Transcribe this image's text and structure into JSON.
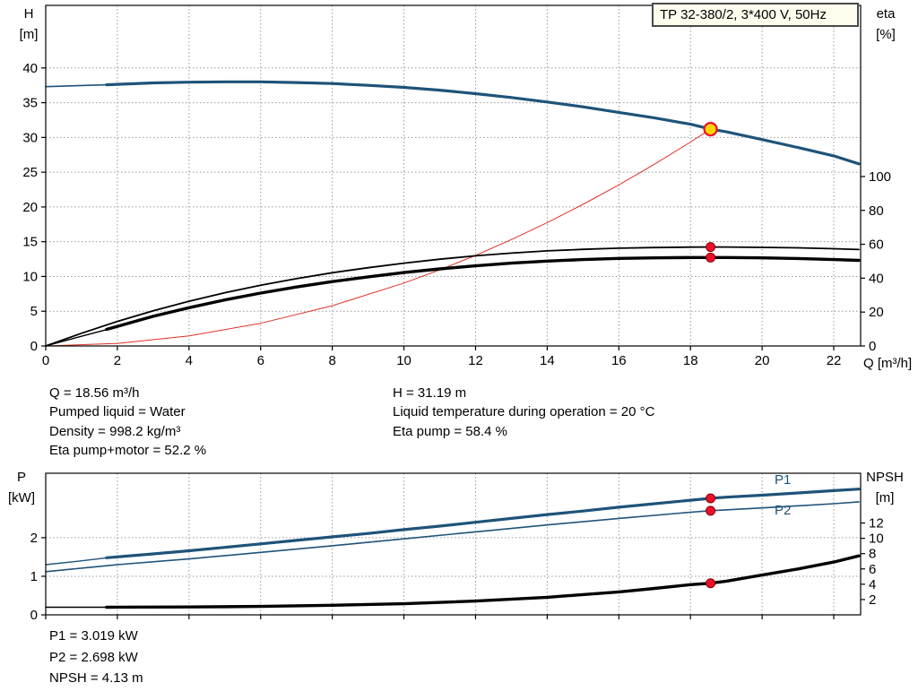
{
  "title_box": {
    "text": "TP 32-380/2, 3*400 V, 50Hz"
  },
  "axis_corner_labels": {
    "top_left": [
      "H",
      "[m]"
    ],
    "top_right": [
      "eta",
      "[%]"
    ],
    "bottom_left": [
      "P",
      "[kW]"
    ],
    "bottom_right": [
      "NPSH",
      "[m]"
    ],
    "x": "Q [m³/h]"
  },
  "info_top": {
    "left": [
      "Q = 18.56 m³/h",
      "Pumped liquid = Water",
      "Density = 998.2 kg/m³",
      "Eta pump+motor = 52.2 %"
    ],
    "right": [
      "H = 31.19 m",
      "Liquid temperature during operation = 20 °C",
      "Eta pump = 58.4 %"
    ]
  },
  "info_bottom": [
    "P1 = 3.019 kW",
    "P2 = 2.698 kW",
    "NPSH = 4.13 m"
  ],
  "duty_point": {
    "Q": 18.56,
    "H": 31.19,
    "eta_pump": 58.4,
    "eta_pump_motor": 52.2,
    "P1": 3.019,
    "P2": 2.698,
    "NPSH": 4.13
  },
  "colors": {
    "curve_blue": "#1e5379",
    "curve_red": "#e03127",
    "curve_black": "#000000",
    "marker_red": "#e8112d",
    "duty_yellow": "#ffd400",
    "grid": "#9a9a9a",
    "frame": "#000000",
    "text": "#000000",
    "title_box_bg": "#fffdee",
    "title_box_border": "#4a4a4a"
  },
  "chart_data": [
    {
      "type": "line",
      "title": "TP 32-380/2, 3*400 V, 50Hz",
      "x_axis": {
        "label": "Q [m³/h]",
        "min": 0,
        "max": 22.75,
        "ticks": [
          0,
          2,
          4,
          6,
          8,
          10,
          12,
          14,
          16,
          18,
          20,
          22
        ],
        "show_labels": true
      },
      "y_left": {
        "label": "H [m]",
        "min": 0,
        "max": 49,
        "ticks": [
          0,
          5,
          10,
          15,
          20,
          25,
          30,
          35,
          40
        ]
      },
      "y_right": {
        "label": "eta [%]",
        "min": 0,
        "max": 201,
        "ticks": [
          0,
          20,
          40,
          60,
          80,
          100
        ]
      },
      "legend": "off",
      "grid": "dotted",
      "series": [
        {
          "name": "head-curve-lead",
          "axis": "left",
          "color": "#1e5379",
          "width": 1.6,
          "points": [
            [
              0,
              37.3
            ],
            [
              0.9,
              37.45
            ],
            [
              1.8,
              37.6
            ]
          ]
        },
        {
          "name": "head-curve",
          "axis": "left",
          "color": "#1e5379",
          "width": 3.2,
          "points": [
            [
              1.7,
              37.58
            ],
            [
              3,
              37.85
            ],
            [
              4,
              37.95
            ],
            [
              5,
              38.0
            ],
            [
              6,
              38.0
            ],
            [
              7,
              37.9
            ],
            [
              8,
              37.75
            ],
            [
              9,
              37.5
            ],
            [
              10,
              37.2
            ],
            [
              11,
              36.8
            ],
            [
              12,
              36.3
            ],
            [
              13,
              35.75
            ],
            [
              14,
              35.1
            ],
            [
              15,
              34.4
            ],
            [
              16,
              33.6
            ],
            [
              17,
              32.8
            ],
            [
              18,
              31.9
            ],
            [
              18.56,
              31.19
            ],
            [
              19,
              30.8
            ],
            [
              20,
              29.7
            ],
            [
              21,
              28.55
            ],
            [
              22,
              27.35
            ],
            [
              22.7,
              26.2
            ]
          ]
        },
        {
          "name": "system-curve",
          "axis": "left",
          "color": "#e03127",
          "width": 1,
          "points": [
            [
              0,
              0
            ],
            [
              2,
              0.36
            ],
            [
              4,
              1.45
            ],
            [
              6,
              3.26
            ],
            [
              8,
              5.79
            ],
            [
              10,
              9.05
            ],
            [
              11,
              10.95
            ],
            [
              12,
              13.03
            ],
            [
              13,
              15.3
            ],
            [
              14,
              17.74
            ],
            [
              15,
              20.37
            ],
            [
              16,
              23.17
            ],
            [
              17,
              26.16
            ],
            [
              18,
              29.33
            ],
            [
              18.56,
              31.19
            ]
          ]
        },
        {
          "name": "eta-pump-curve",
          "axis": "right",
          "color": "#000000",
          "width": 1.8,
          "points": [
            [
              0,
              0
            ],
            [
              1,
              7.5
            ],
            [
              2,
              14.5
            ],
            [
              3,
              20.8
            ],
            [
              4,
              26.4
            ],
            [
              5,
              31.4
            ],
            [
              6,
              35.8
            ],
            [
              7,
              39.7
            ],
            [
              8,
              43.2
            ],
            [
              9,
              46.2
            ],
            [
              10,
              48.9
            ],
            [
              11,
              51.2
            ],
            [
              12,
              53.2
            ],
            [
              13,
              54.8
            ],
            [
              14,
              56.1
            ],
            [
              15,
              57.0
            ],
            [
              16,
              57.7
            ],
            [
              17,
              58.1
            ],
            [
              18,
              58.35
            ],
            [
              18.56,
              58.4
            ],
            [
              19,
              58.4
            ],
            [
              20,
              58.2
            ],
            [
              21,
              57.9
            ],
            [
              22,
              57.4
            ],
            [
              22.7,
              56.9
            ]
          ]
        },
        {
          "name": "eta-pump-motor-lead",
          "axis": "right",
          "color": "#000000",
          "width": 1.4,
          "points": [
            [
              0,
              0
            ],
            [
              0.9,
              5.2
            ],
            [
              1.8,
              10.2
            ]
          ]
        },
        {
          "name": "eta-pump-motor-curve",
          "axis": "right",
          "color": "#000000",
          "width": 3.4,
          "points": [
            [
              1.7,
              9.8
            ],
            [
              3,
              17.5
            ],
            [
              4,
              22.6
            ],
            [
              5,
              27.2
            ],
            [
              6,
              31.2
            ],
            [
              7,
              34.8
            ],
            [
              8,
              38.0
            ],
            [
              9,
              40.8
            ],
            [
              10,
              43.3
            ],
            [
              11,
              45.5
            ],
            [
              12,
              47.3
            ],
            [
              13,
              48.9
            ],
            [
              14,
              50.1
            ],
            [
              15,
              51.0
            ],
            [
              16,
              51.7
            ],
            [
              17,
              52.0
            ],
            [
              18,
              52.2
            ],
            [
              18.56,
              52.2
            ],
            [
              19,
              52.2
            ],
            [
              20,
              52.0
            ],
            [
              21,
              51.6
            ],
            [
              22,
              51.0
            ],
            [
              22.7,
              50.5
            ]
          ]
        }
      ],
      "markers": [
        {
          "name": "duty-point",
          "axis": "left",
          "x": 18.56,
          "value": 31.19,
          "r": 7,
          "fill": "#ffd400",
          "stroke": "#e8112d",
          "stroke_width": 2.2,
          "interactable": true
        },
        {
          "name": "eta-pump-marker",
          "axis": "right",
          "x": 18.56,
          "value": 58.4,
          "r": 5,
          "fill": "#e8112d",
          "stroke": "#8b0000",
          "stroke_width": 1,
          "interactable": false
        },
        {
          "name": "eta-pump-motor-marker",
          "axis": "right",
          "x": 18.56,
          "value": 52.2,
          "r": 5,
          "fill": "#e8112d",
          "stroke": "#8b0000",
          "stroke_width": 1,
          "interactable": false
        }
      ]
    },
    {
      "type": "line",
      "title": "",
      "x_axis": {
        "label": "Q [m³/h]",
        "min": 0,
        "max": 22.75,
        "ticks": [
          0,
          2,
          4,
          6,
          8,
          10,
          12,
          14,
          16,
          18,
          20,
          22
        ],
        "show_labels": false
      },
      "y_left": {
        "label": "P [kW]",
        "min": 0,
        "max": 3.67,
        "ticks": [
          0,
          1,
          2
        ]
      },
      "y_right": {
        "label": "NPSH [m]",
        "min": 0,
        "max": 18.5,
        "ticks": [
          2,
          4,
          6,
          8,
          10,
          12
        ]
      },
      "legend": "off",
      "grid": "dotted",
      "series": [
        {
          "name": "p1-curve-lead",
          "axis": "left",
          "color": "#1e5379",
          "width": 1.4,
          "points": [
            [
              0,
              1.3
            ],
            [
              0.9,
              1.39
            ],
            [
              1.8,
              1.49
            ]
          ]
        },
        {
          "name": "p1-curve",
          "axis": "left",
          "color": "#1e5379",
          "width": 3.2,
          "points": [
            [
              1.7,
              1.48
            ],
            [
              3,
              1.58
            ],
            [
              4,
              1.66
            ],
            [
              5,
              1.75
            ],
            [
              6,
              1.84
            ],
            [
              7,
              1.93
            ],
            [
              8,
              2.02
            ],
            [
              9,
              2.11
            ],
            [
              10,
              2.21
            ],
            [
              11,
              2.3
            ],
            [
              12,
              2.4
            ],
            [
              13,
              2.5
            ],
            [
              14,
              2.6
            ],
            [
              15,
              2.69
            ],
            [
              16,
              2.79
            ],
            [
              17,
              2.88
            ],
            [
              18,
              2.97
            ],
            [
              18.56,
              3.019
            ],
            [
              19,
              3.05
            ],
            [
              20,
              3.1
            ],
            [
              21,
              3.16
            ],
            [
              22,
              3.22
            ],
            [
              22.7,
              3.26
            ]
          ]
        },
        {
          "name": "p2-curve",
          "axis": "left",
          "color": "#1e5379",
          "width": 1.6,
          "points": [
            [
              0,
              1.12
            ],
            [
              2,
              1.3
            ],
            [
              4,
              1.45
            ],
            [
              6,
              1.62
            ],
            [
              8,
              1.79
            ],
            [
              10,
              1.97
            ],
            [
              12,
              2.15
            ],
            [
              14,
              2.33
            ],
            [
              16,
              2.5
            ],
            [
              18,
              2.66
            ],
            [
              18.56,
              2.698
            ],
            [
              20,
              2.77
            ],
            [
              22,
              2.88
            ],
            [
              22.7,
              2.93
            ]
          ]
        },
        {
          "name": "npsh-curve-lead",
          "axis": "right",
          "color": "#000000",
          "width": 1.4,
          "points": [
            [
              0,
              1.0
            ],
            [
              1,
              1.0
            ],
            [
              1.8,
              1.0
            ]
          ]
        },
        {
          "name": "npsh-curve",
          "axis": "right",
          "color": "#000000",
          "width": 3.4,
          "points": [
            [
              1.7,
              1.0
            ],
            [
              4,
              1.03
            ],
            [
              6,
              1.1
            ],
            [
              8,
              1.25
            ],
            [
              10,
              1.45
            ],
            [
              12,
              1.8
            ],
            [
              14,
              2.3
            ],
            [
              16,
              3.0
            ],
            [
              17,
              3.45
            ],
            [
              18,
              3.95
            ],
            [
              18.56,
              4.13
            ],
            [
              19,
              4.4
            ],
            [
              20,
              5.2
            ],
            [
              21,
              6.0
            ],
            [
              22,
              6.9
            ],
            [
              22.7,
              7.7
            ]
          ]
        }
      ],
      "markers": [
        {
          "name": "p1-marker",
          "axis": "left",
          "x": 18.56,
          "value": 3.019,
          "r": 5,
          "fill": "#e8112d",
          "stroke": "#8b0000",
          "stroke_width": 1,
          "interactable": false
        },
        {
          "name": "p2-marker",
          "axis": "left",
          "x": 18.56,
          "value": 2.698,
          "r": 5,
          "fill": "#e8112d",
          "stroke": "#8b0000",
          "stroke_width": 1,
          "interactable": false
        },
        {
          "name": "npsh-marker",
          "axis": "right",
          "x": 18.56,
          "value": 4.13,
          "r": 5,
          "fill": "#e8112d",
          "stroke": "#8b0000",
          "stroke_width": 1,
          "interactable": false
        }
      ],
      "curve_labels": [
        {
          "text": "P1"
        },
        {
          "text": "P2"
        }
      ]
    }
  ]
}
